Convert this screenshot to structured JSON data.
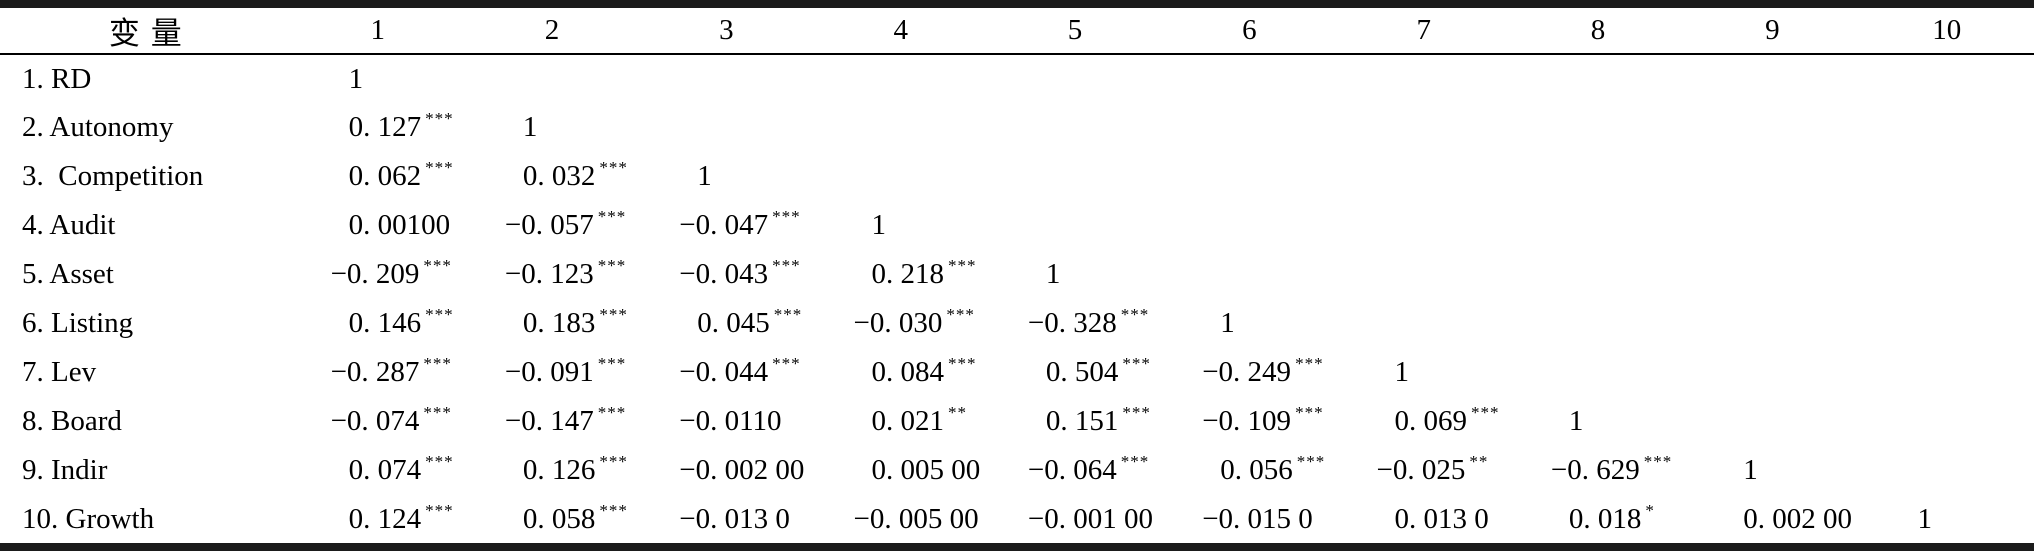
{
  "table": {
    "header_label": "变量",
    "columns": [
      "1",
      "2",
      "3",
      "4",
      "5",
      "6",
      "7",
      "8",
      "9",
      "10"
    ],
    "rows": [
      {
        "label": "1. RD",
        "cells": [
          {
            "v": "1",
            "s": ""
          }
        ]
      },
      {
        "label": "2. Autonomy",
        "cells": [
          {
            "v": "0. 127",
            "s": "***"
          },
          {
            "v": "1",
            "s": ""
          }
        ]
      },
      {
        "label": "3.  Competition",
        "cells": [
          {
            "v": "0. 062",
            "s": "***"
          },
          {
            "v": "0. 032",
            "s": "***"
          },
          {
            "v": "1",
            "s": ""
          }
        ]
      },
      {
        "label": "4. Audit",
        "cells": [
          {
            "v": "0. 00100",
            "s": ""
          },
          {
            "v": "−0. 057",
            "s": "***"
          },
          {
            "v": "−0. 047",
            "s": "***"
          },
          {
            "v": "1",
            "s": ""
          }
        ]
      },
      {
        "label": "5. Asset",
        "cells": [
          {
            "v": "−0. 209",
            "s": "***"
          },
          {
            "v": "−0. 123",
            "s": "***"
          },
          {
            "v": "−0. 043",
            "s": "***"
          },
          {
            "v": "0. 218",
            "s": "***"
          },
          {
            "v": "1",
            "s": ""
          }
        ]
      },
      {
        "label": "6. Listing",
        "cells": [
          {
            "v": "0. 146",
            "s": "***"
          },
          {
            "v": "0. 183",
            "s": "***"
          },
          {
            "v": "0. 045",
            "s": "***"
          },
          {
            "v": "−0. 030",
            "s": "***"
          },
          {
            "v": "−0. 328",
            "s": "***"
          },
          {
            "v": "1",
            "s": ""
          }
        ]
      },
      {
        "label": "7. Lev",
        "cells": [
          {
            "v": "−0. 287",
            "s": "***"
          },
          {
            "v": "−0. 091",
            "s": "***"
          },
          {
            "v": "−0. 044",
            "s": "***"
          },
          {
            "v": "0. 084",
            "s": "***"
          },
          {
            "v": "0. 504",
            "s": "***"
          },
          {
            "v": "−0. 249",
            "s": "***"
          },
          {
            "v": "1",
            "s": ""
          }
        ]
      },
      {
        "label": "8. Board",
        "cells": [
          {
            "v": "−0. 074",
            "s": "***"
          },
          {
            "v": "−0. 147",
            "s": "***"
          },
          {
            "v": "−0. 0110",
            "s": ""
          },
          {
            "v": "0. 021",
            "s": "**"
          },
          {
            "v": "0. 151",
            "s": "***"
          },
          {
            "v": "−0. 109",
            "s": "***"
          },
          {
            "v": "0. 069",
            "s": "***"
          },
          {
            "v": "1",
            "s": ""
          }
        ]
      },
      {
        "label": "9. Indir",
        "cells": [
          {
            "v": "0. 074",
            "s": "***"
          },
          {
            "v": "0. 126",
            "s": "***"
          },
          {
            "v": "−0. 002 00",
            "s": ""
          },
          {
            "v": "0. 005 00",
            "s": ""
          },
          {
            "v": "−0. 064",
            "s": "***"
          },
          {
            "v": "0. 056",
            "s": "***"
          },
          {
            "v": "−0. 025",
            "s": "**"
          },
          {
            "v": "−0. 629",
            "s": "***"
          },
          {
            "v": "1",
            "s": ""
          }
        ]
      },
      {
        "label": "10. Growth",
        "cells": [
          {
            "v": "0. 124",
            "s": "***"
          },
          {
            "v": "0. 058",
            "s": "***"
          },
          {
            "v": "−0. 013 0",
            "s": ""
          },
          {
            "v": "−0. 005 00",
            "s": ""
          },
          {
            "v": "−0. 001 00",
            "s": ""
          },
          {
            "v": "−0. 015 0",
            "s": ""
          },
          {
            "v": "0. 013 0",
            "s": ""
          },
          {
            "v": "0. 018",
            "s": "*"
          },
          {
            "v": "0. 002 00",
            "s": ""
          },
          {
            "v": "1",
            "s": ""
          }
        ]
      }
    ]
  },
  "colors": {
    "background": "#ffffff",
    "text": "#000000",
    "thick_rule": "#1b1b1b",
    "thin_rule": "#000000"
  }
}
